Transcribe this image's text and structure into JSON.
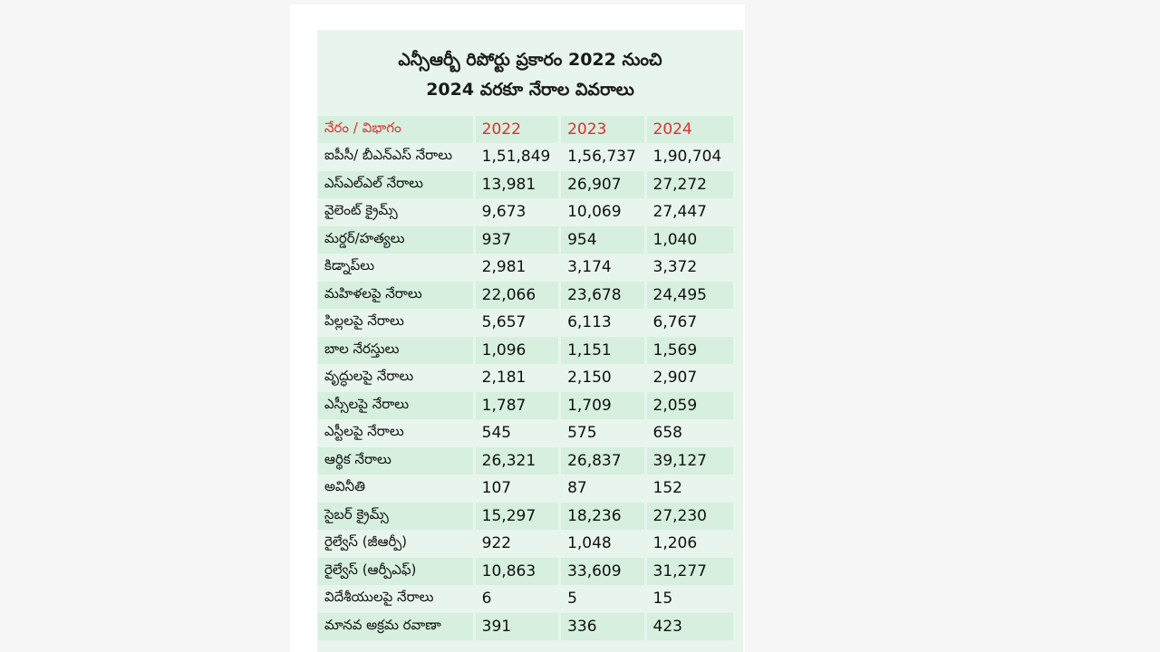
{
  "header": {
    "title_lines": [
      "ఎన్సీఆర్బీ రిపోర్టు ప్రకారం 2022 నుంచి",
      "2024 వరకూ నేరాల వివరాలు"
    ]
  },
  "table": {
    "columns": [
      "నేరం / విభాగం",
      "2022",
      "2023",
      "2024"
    ],
    "rows": [
      [
        "ఐపీసీ/ బీఎన్ఎస్ నేరాలు",
        "1,51,849",
        "1,56,737",
        "1,90,704"
      ],
      [
        "ఎస్ఎల్ఎల్ నేరాలు",
        "13,981",
        "26,907",
        "27,272"
      ],
      [
        "వైలెంట్ క్రైమ్స్",
        "9,673",
        "10,069",
        "27,447"
      ],
      [
        "మర్డర్/హత్యలు",
        "937",
        "954",
        "1,040"
      ],
      [
        "కిడ్నాప్‌లు",
        "2,981",
        "3,174",
        "3,372"
      ],
      [
        "మహిళలపై నేరాలు",
        "22,066",
        "23,678",
        "24,495"
      ],
      [
        "పిల్లలపై నేరాలు",
        "5,657",
        "6,113",
        "6,767"
      ],
      [
        "బాల నేరస్తులు",
        "1,096",
        "1,151",
        "1,569"
      ],
      [
        "వృద్ధులపై నేరాలు",
        "2,181",
        "2,150",
        "2,907"
      ],
      [
        "ఎస్సీలపై నేరాలు",
        "1,787",
        "1,709",
        "2,059"
      ],
      [
        "ఎస్టీలపై నేరాలు",
        "545",
        "575",
        "658"
      ],
      [
        "ఆర్థిక నేరాలు",
        "26,321",
        "26,837",
        "39,127"
      ],
      [
        "అవినీతి",
        "107",
        "87",
        "152"
      ],
      [
        "సైబర్ క్రైమ్స్",
        "15,297",
        "18,236",
        "27,230"
      ],
      [
        "రైల్వేస్ (జీఆర్పీ)",
        "922",
        "1,048",
        "1,206"
      ],
      [
        "రైల్వేస్ (ఆర్పీఎఫ్)",
        "10,863",
        "33,609",
        "31,277"
      ],
      [
        "విదేశీయులపై నేరాలు",
        "6",
        "5",
        "15"
      ],
      [
        "మానవ అక్రమ రవాణా",
        "391",
        "336",
        "423"
      ]
    ]
  }
}
